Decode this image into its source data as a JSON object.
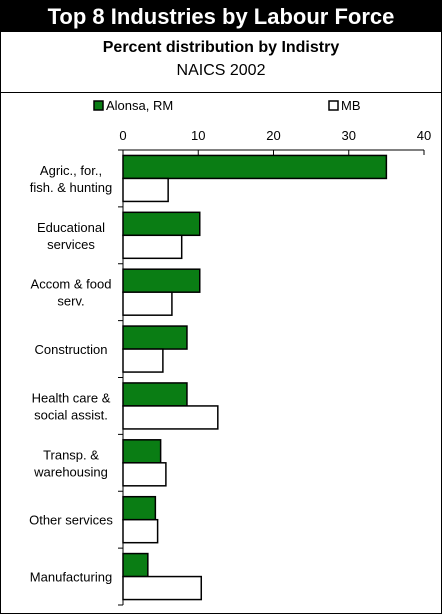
{
  "header": {
    "title": "Top 8 Industries by Labour Force",
    "subtitle": "Percent distribution by Indistry",
    "subtitle2": "NAICS 2002"
  },
  "chart_data": {
    "type": "bar",
    "orientation": "horizontal",
    "categories": [
      [
        "Agric., for.,",
        "fish. & hunting"
      ],
      [
        "Educational",
        "services"
      ],
      [
        "Accom & food",
        "serv."
      ],
      [
        "Construction"
      ],
      [
        "Health care &",
        "social assist."
      ],
      [
        "Transp. &",
        "warehousing"
      ],
      [
        "Other services"
      ],
      [
        "Manufacturing"
      ]
    ],
    "series": [
      {
        "name": "Alonsa, RM",
        "color": "#0a7d14",
        "values": [
          35.0,
          10.2,
          10.2,
          8.5,
          8.5,
          5.0,
          4.3,
          3.3
        ]
      },
      {
        "name": "MB",
        "color": "#ffffff",
        "values": [
          6.0,
          7.8,
          6.5,
          5.3,
          12.6,
          5.7,
          4.6,
          10.4
        ]
      }
    ],
    "xlim": [
      0,
      40
    ],
    "xticks": [
      "0",
      "10",
      "20",
      "30",
      "40"
    ],
    "legend_position": "top",
    "grid": false
  }
}
